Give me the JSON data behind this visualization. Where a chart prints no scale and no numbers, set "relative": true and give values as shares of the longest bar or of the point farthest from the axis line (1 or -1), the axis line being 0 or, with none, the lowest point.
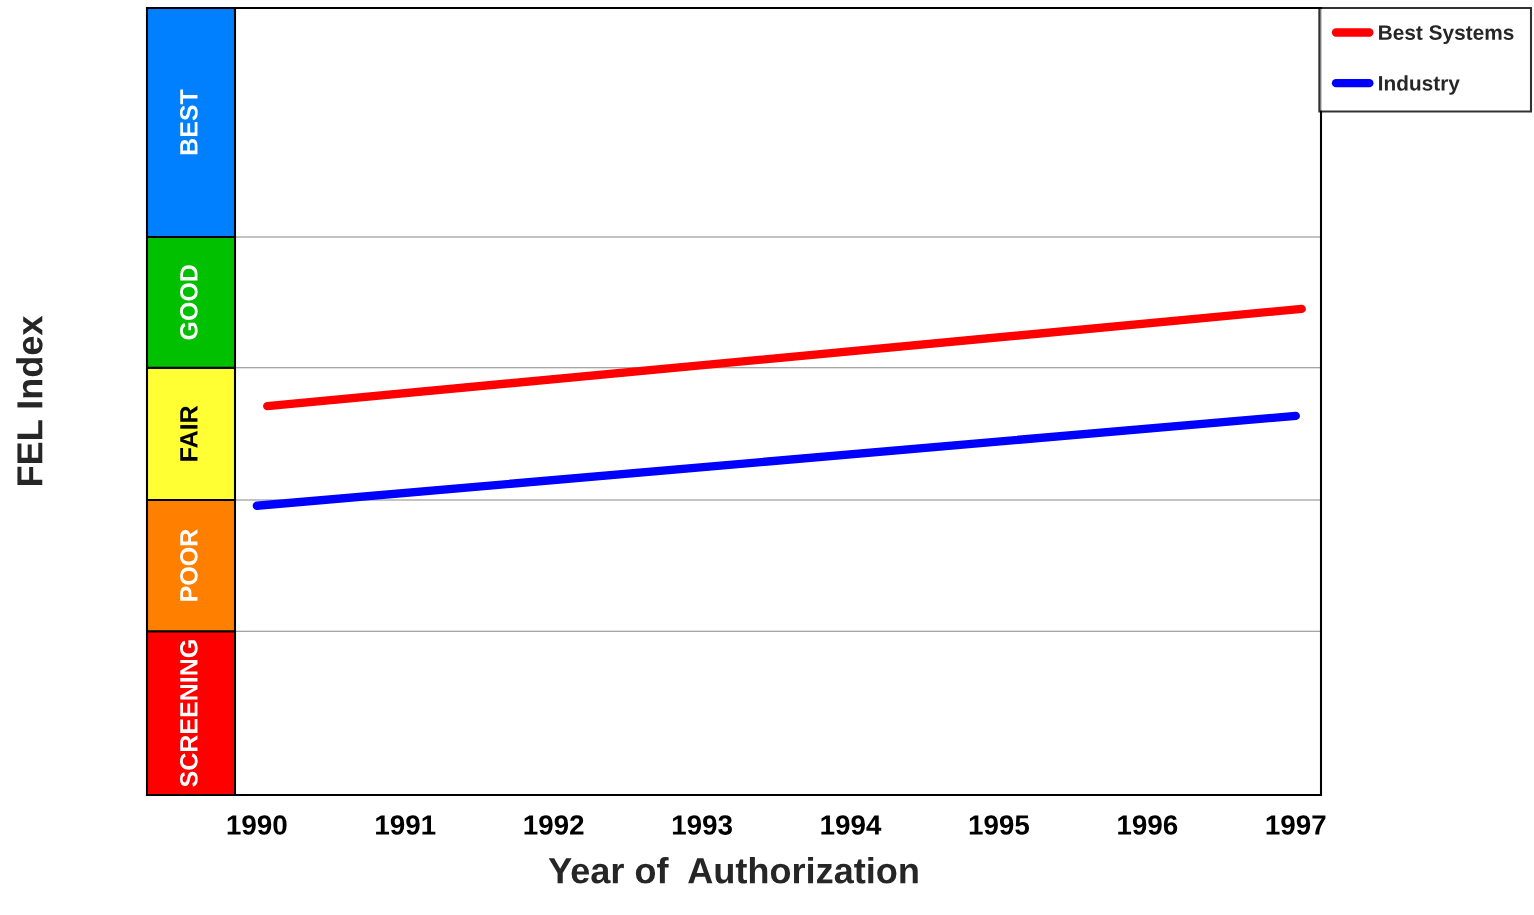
{
  "chart_data": {
    "type": "line",
    "xlabel": "Year of  Authorization",
    "ylabel": "FEL Index",
    "relative": true,
    "xlim": [
      1989.26,
      1997.17
    ],
    "xticks": [
      1990,
      1991,
      1992,
      1993,
      1994,
      1995,
      1996,
      1997
    ],
    "series": [
      {
        "name": "Best Systems",
        "color": "#ff0000",
        "x": [
          1990.07,
          1997.04
        ],
        "values": [
          0.8,
          1.0
        ]
      },
      {
        "name": "Industry",
        "color": "#0000ff",
        "x": [
          1990.0,
          1997.0
        ],
        "values": [
          0.595,
          0.78
        ]
      }
    ],
    "bands": [
      {
        "axis": "y",
        "from": 0,
        "to": 0.337,
        "label": "SCREENING",
        "color": "#ff0000"
      },
      {
        "axis": "y",
        "from": 0.337,
        "to": 0.607,
        "label": "POOR",
        "color": "#ff8000"
      },
      {
        "axis": "y",
        "from": 0.607,
        "to": 0.879,
        "label": "FAIR",
        "color": "#ffff33"
      },
      {
        "axis": "y",
        "from": 0.879,
        "to": 1.148,
        "label": "GOOD",
        "color": "#00c000"
      },
      {
        "axis": "y",
        "from": 1.148,
        "to": 1.619,
        "label": "BEST",
        "color": "#0080ff"
      }
    ],
    "legend": "right",
    "marker": "none",
    "line_style": "solid"
  }
}
